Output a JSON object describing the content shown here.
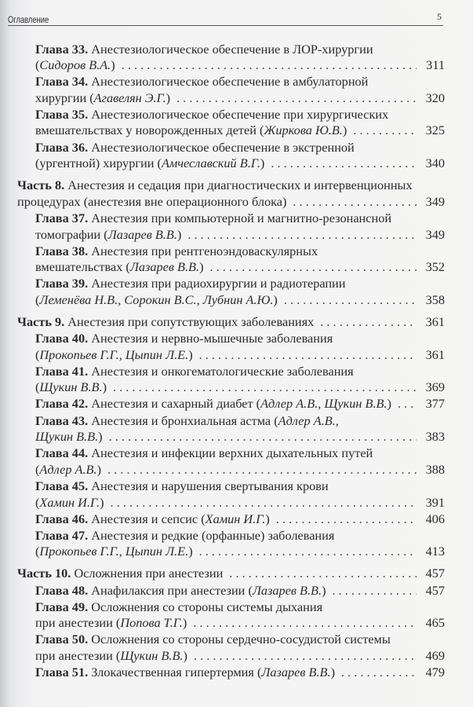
{
  "header": {
    "title": "Оглавление",
    "page_number": "5"
  },
  "entries": [
    {
      "type": "chapter",
      "label": "Глава 33.",
      "lines": [
        [
          {
            "t": "Анестезиологическое обеспечение в ЛОР-хирургии"
          }
        ],
        [
          {
            "t": "("
          },
          {
            "t": "Сидоров В.А.",
            "i": true
          },
          {
            "t": ")"
          }
        ]
      ],
      "page": "311"
    },
    {
      "type": "chapter",
      "label": "Глава 34.",
      "lines": [
        [
          {
            "t": "Анестезиологическое обеспечение в амбулаторной"
          }
        ],
        [
          {
            "t": "хирургии ("
          },
          {
            "t": "Агавелян Э.Г.",
            "i": true
          },
          {
            "t": ")"
          }
        ]
      ],
      "page": "320"
    },
    {
      "type": "chapter",
      "label": "Глава 35.",
      "lines": [
        [
          {
            "t": "Анестезиологическое обеспечение при хирургических"
          }
        ],
        [
          {
            "t": "вмешательствах у новорожденных детей ("
          },
          {
            "t": "Жиркова Ю.В.",
            "i": true
          },
          {
            "t": ")"
          }
        ]
      ],
      "page": "325"
    },
    {
      "type": "chapter",
      "label": "Глава 36.",
      "lines": [
        [
          {
            "t": "Анестезиологическое обеспечение в экстренной"
          }
        ],
        [
          {
            "t": "(ургентной) хирургии ("
          },
          {
            "t": "Амчеславский В.Г.",
            "i": true
          },
          {
            "t": ")"
          }
        ]
      ],
      "page": "340"
    },
    {
      "type": "part",
      "label": "Часть 8.",
      "lines": [
        [
          {
            "t": "Анестезия и седация при диагностических и интервенционных"
          }
        ],
        [
          {
            "t": "процедурах (анестезия вне операционного блока)"
          }
        ]
      ],
      "page": "349"
    },
    {
      "type": "chapter",
      "label": "Глава 37.",
      "lines": [
        [
          {
            "t": "Анестезия при компьютерной и магнитно-резонансной"
          }
        ],
        [
          {
            "t": "томографии ("
          },
          {
            "t": "Лазарев В.В.",
            "i": true
          },
          {
            "t": ")"
          }
        ]
      ],
      "page": "349"
    },
    {
      "type": "chapter",
      "label": "Глава 38.",
      "lines": [
        [
          {
            "t": "Анестезия при рентгеноэндоваскулярных"
          }
        ],
        [
          {
            "t": "вмешательствах ("
          },
          {
            "t": "Лазарев В.В.",
            "i": true
          },
          {
            "t": ")"
          }
        ]
      ],
      "page": "352"
    },
    {
      "type": "chapter",
      "label": "Глава 39.",
      "lines": [
        [
          {
            "t": "Анестезия при радиохирургии и радиотерапии"
          }
        ],
        [
          {
            "t": "("
          },
          {
            "t": "Леменёва Н.В., Сорокин В.С., Лубнин А.Ю.",
            "i": true
          },
          {
            "t": ")"
          }
        ]
      ],
      "page": "358"
    },
    {
      "type": "part",
      "label": "Часть 9.",
      "lines": [
        [
          {
            "t": "Анестезия при сопутствующих заболеваниях"
          }
        ]
      ],
      "page": "361"
    },
    {
      "type": "chapter",
      "label": "Глава 40.",
      "lines": [
        [
          {
            "t": "Анестезия и нервно-мышечные заболевания"
          }
        ],
        [
          {
            "t": "("
          },
          {
            "t": "Прокопьев Г.Г., Цыпин Л.Е.",
            "i": true
          },
          {
            "t": ")"
          }
        ]
      ],
      "page": "361"
    },
    {
      "type": "chapter",
      "label": "Глава 41.",
      "lines": [
        [
          {
            "t": "Анестезия и онкогематологические заболевания"
          }
        ],
        [
          {
            "t": "("
          },
          {
            "t": "Щукин В.В.",
            "i": true
          },
          {
            "t": ")"
          }
        ]
      ],
      "page": "369"
    },
    {
      "type": "chapter",
      "label": "Глава 42.",
      "lines": [
        [
          {
            "t": "Анестезия и сахарный диабет ("
          },
          {
            "t": "Адлер А.В., Щукин В.В.",
            "i": true
          },
          {
            "t": ")"
          }
        ]
      ],
      "page": "377"
    },
    {
      "type": "chapter",
      "label": "Глава 43.",
      "lines": [
        [
          {
            "t": "Анестезия и бронхиальная астма ("
          },
          {
            "t": "Адлер А.В.,",
            "i": true
          }
        ],
        [
          {
            "t": "Щукин В.В.",
            "i": true
          },
          {
            "t": ")"
          }
        ]
      ],
      "page": "383"
    },
    {
      "type": "chapter",
      "label": "Глава 44.",
      "lines": [
        [
          {
            "t": "Анестезия и инфекции верхних дыхательных путей"
          }
        ],
        [
          {
            "t": "("
          },
          {
            "t": "Адлер А.В.",
            "i": true
          },
          {
            "t": ")"
          }
        ]
      ],
      "page": "388"
    },
    {
      "type": "chapter",
      "label": "Глава 45.",
      "lines": [
        [
          {
            "t": "Анестезия и нарушения свертывания крови"
          }
        ],
        [
          {
            "t": "("
          },
          {
            "t": "Хамин И.Г.",
            "i": true
          },
          {
            "t": ")"
          }
        ]
      ],
      "page": "391"
    },
    {
      "type": "chapter",
      "label": "Глава 46.",
      "lines": [
        [
          {
            "t": "Анестезия и сепсис ("
          },
          {
            "t": "Хамин И.Г.",
            "i": true
          },
          {
            "t": ")"
          }
        ]
      ],
      "page": "406"
    },
    {
      "type": "chapter",
      "label": "Глава 47.",
      "lines": [
        [
          {
            "t": "Анестезия и редкие (орфанные) заболевания"
          }
        ],
        [
          {
            "t": "("
          },
          {
            "t": "Прокопьев Г.Г., Цыпин Л.Е.",
            "i": true
          },
          {
            "t": ")"
          }
        ]
      ],
      "page": "413"
    },
    {
      "type": "part",
      "label": "Часть 10.",
      "lines": [
        [
          {
            "t": "Осложнения при анестезии"
          }
        ]
      ],
      "page": "457"
    },
    {
      "type": "chapter",
      "label": "Глава 48.",
      "lines": [
        [
          {
            "t": "Анафилаксия при анестезии ("
          },
          {
            "t": "Лазарев В.В.",
            "i": true
          },
          {
            "t": ")"
          }
        ]
      ],
      "page": "457"
    },
    {
      "type": "chapter",
      "label": "Глава 49.",
      "lines": [
        [
          {
            "t": "Осложнения со стороны системы дыхания"
          }
        ],
        [
          {
            "t": "при анестезии ("
          },
          {
            "t": "Попова Т.Г.",
            "i": true
          },
          {
            "t": ")"
          }
        ]
      ],
      "page": "465"
    },
    {
      "type": "chapter",
      "label": "Глава 50.",
      "lines": [
        [
          {
            "t": "Осложнения со стороны сердечно-сосудистой системы"
          }
        ],
        [
          {
            "t": "при анестезии ("
          },
          {
            "t": "Щукин В.В.",
            "i": true
          },
          {
            "t": ")"
          }
        ]
      ],
      "page": "469"
    },
    {
      "type": "chapter",
      "label": "Глава 51.",
      "lines": [
        [
          {
            "t": "Злокачественная гипертермия ("
          },
          {
            "t": "Лазарев В.В.",
            "i": true
          },
          {
            "t": ")"
          }
        ]
      ],
      "page": "479"
    }
  ]
}
